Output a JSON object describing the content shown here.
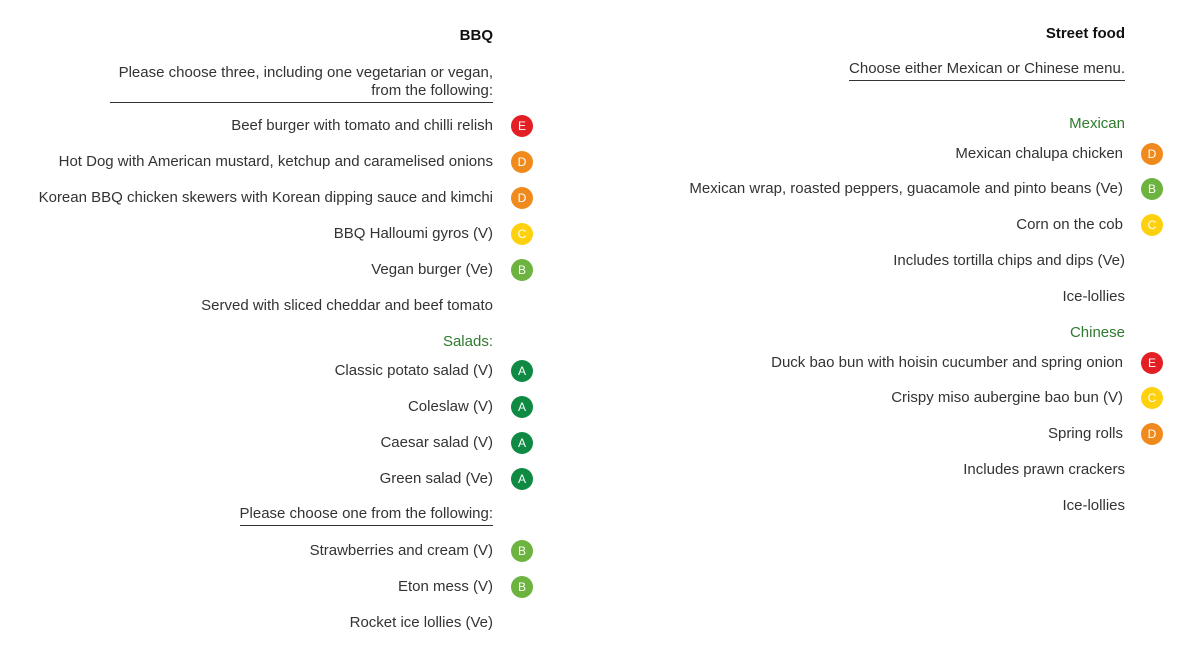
{
  "bbq": {
    "title": "BBQ",
    "intro_line1": "Please choose three, including one vegetarian or vegan,",
    "intro_line2": "from the following:",
    "mains": [
      {
        "name": "Beef burger with tomato and chilli relish",
        "grade": "E"
      },
      {
        "name": "Hot Dog with American mustard, ketchup and caramelised onions",
        "grade": "D"
      },
      {
        "name": "Korean BBQ chicken skewers with Korean dipping sauce and kimchi",
        "grade": "D"
      },
      {
        "name": "BBQ Halloumi gyros (V)",
        "grade": "C"
      },
      {
        "name": "Vegan burger (Ve)",
        "grade": "B"
      }
    ],
    "served_with": "Served with sliced cheddar and beef tomato",
    "salads_heading": "Salads:",
    "salads": [
      {
        "name": "Classic potato salad (V)",
        "grade": "A"
      },
      {
        "name": "Coleslaw (V)",
        "grade": "A"
      },
      {
        "name": "Caesar salad (V)",
        "grade": "A"
      },
      {
        "name": "Green salad (Ve)",
        "grade": "A"
      }
    ],
    "dessert_intro": "Please choose one from the following:",
    "desserts": [
      {
        "name": "Strawberries and cream (V)",
        "grade": "B"
      },
      {
        "name": "Eton mess (V)",
        "grade": "B"
      }
    ],
    "last_item": "Rocket ice lollies (Ve)"
  },
  "street": {
    "title": "Street food",
    "intro": "Choose either Mexican or Chinese menu.",
    "mexican_heading": "Mexican",
    "mexican": [
      {
        "name": "Mexican chalupa chicken",
        "grade": "D"
      },
      {
        "name": "Mexican wrap, roasted peppers, guacamole and pinto beans (Ve)",
        "grade": "B"
      },
      {
        "name": "Corn on the cob",
        "grade": "C"
      }
    ],
    "mexican_includes": "Includes tortilla chips and dips (Ve)",
    "mexican_lollies": "Ice-lollies",
    "chinese_heading": "Chinese",
    "chinese": [
      {
        "name": "Duck bao bun with hoisin cucumber and spring onion",
        "grade": "E"
      },
      {
        "name": "Crispy miso aubergine bao bun (V)",
        "grade": "C"
      },
      {
        "name": "Spring rolls",
        "grade": "D"
      }
    ],
    "chinese_includes": "Includes prawn crackers",
    "chinese_lollies": "Ice-lollies"
  },
  "colors": {
    "A": "#0e8a43",
    "B": "#6cb33f",
    "C": "#fdd10d",
    "D": "#f08a1c",
    "E": "#e31e24",
    "section_green": "#2e7a2e"
  }
}
